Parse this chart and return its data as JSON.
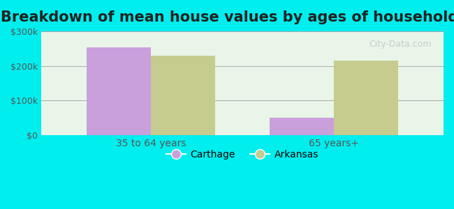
{
  "title": "Breakdown of mean house values by ages of householders",
  "categories": [
    "35 to 64 years",
    "65 years+"
  ],
  "series": {
    "Carthage": [
      253000,
      50000
    ],
    "Arkansas": [
      230000,
      215000
    ]
  },
  "colors": {
    "Carthage": "#c9a0dc",
    "Arkansas": "#c5cc8e"
  },
  "ylim": [
    0,
    300000
  ],
  "yticks": [
    0,
    100000,
    200000,
    300000
  ],
  "ytick_labels": [
    "$0",
    "$100k",
    "$200k",
    "$300k"
  ],
  "background_color": "#00eeee",
  "plot_bg_color": "#e8f5e8",
  "title_fontsize": 15,
  "bar_width": 0.35,
  "watermark": "City-Data.com"
}
